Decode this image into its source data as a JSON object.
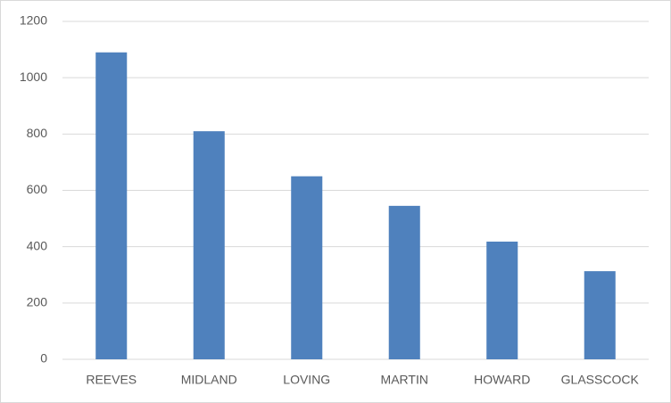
{
  "chart_data": {
    "type": "bar",
    "categories": [
      "REEVES",
      "MIDLAND",
      "LOVING",
      "MARTIN",
      "HOWARD",
      "GLASSCOCK"
    ],
    "values": [
      1090,
      810,
      650,
      545,
      418,
      313
    ],
    "color": "#4f81bd",
    "ylim": [
      0,
      1200
    ],
    "yticks": [
      0,
      200,
      400,
      600,
      800,
      1000,
      1200
    ],
    "grid": true
  }
}
